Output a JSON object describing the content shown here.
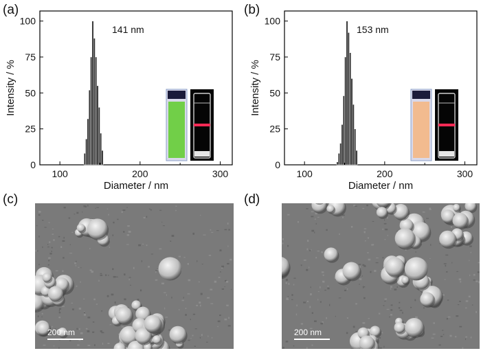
{
  "panels": {
    "a": "(a)",
    "b": "(b)",
    "c": "(c)",
    "d": "(d)"
  },
  "chart_data": [
    {
      "type": "bar",
      "panel": "(a)",
      "annotation": "141 nm",
      "xlabel": "Diameter / nm",
      "ylabel": "Intensity / %",
      "xlim": [
        75,
        315
      ],
      "ylim": [
        0,
        107
      ],
      "xticks": [
        100,
        200,
        300
      ],
      "yticks": [
        0,
        25,
        50,
        75,
        100
      ],
      "bin_width": 2,
      "x": [
        131,
        133,
        135,
        137,
        139,
        141,
        143,
        145,
        147,
        149,
        151,
        153
      ],
      "values": [
        8,
        18,
        32,
        52,
        75,
        100,
        88,
        75,
        55,
        40,
        22,
        10
      ],
      "inset_colors": {
        "vial_1": "#6ccf3f",
        "vial_2_beam": "#ff2a55"
      }
    },
    {
      "type": "bar",
      "panel": "(b)",
      "annotation": "153 nm",
      "xlabel": "Diameter / nm",
      "ylabel": "Intensity / %",
      "xlim": [
        75,
        315
      ],
      "ylim": [
        0,
        107
      ],
      "xticks": [
        100,
        200,
        300
      ],
      "yticks": [
        0,
        25,
        50,
        75,
        100
      ],
      "bin_width": 2,
      "x": [
        141,
        143,
        145,
        147,
        149,
        151,
        153,
        155,
        157,
        159,
        161,
        163,
        165
      ],
      "values": [
        2,
        8,
        15,
        28,
        48,
        75,
        100,
        92,
        78,
        60,
        42,
        25,
        10
      ],
      "inset_colors": {
        "vial_1": "#f3b98a",
        "vial_2_beam": "#ff2a55"
      }
    }
  ],
  "sem": {
    "c": {
      "scale_label": "200 nm"
    },
    "d": {
      "scale_label": "200 nm"
    }
  }
}
